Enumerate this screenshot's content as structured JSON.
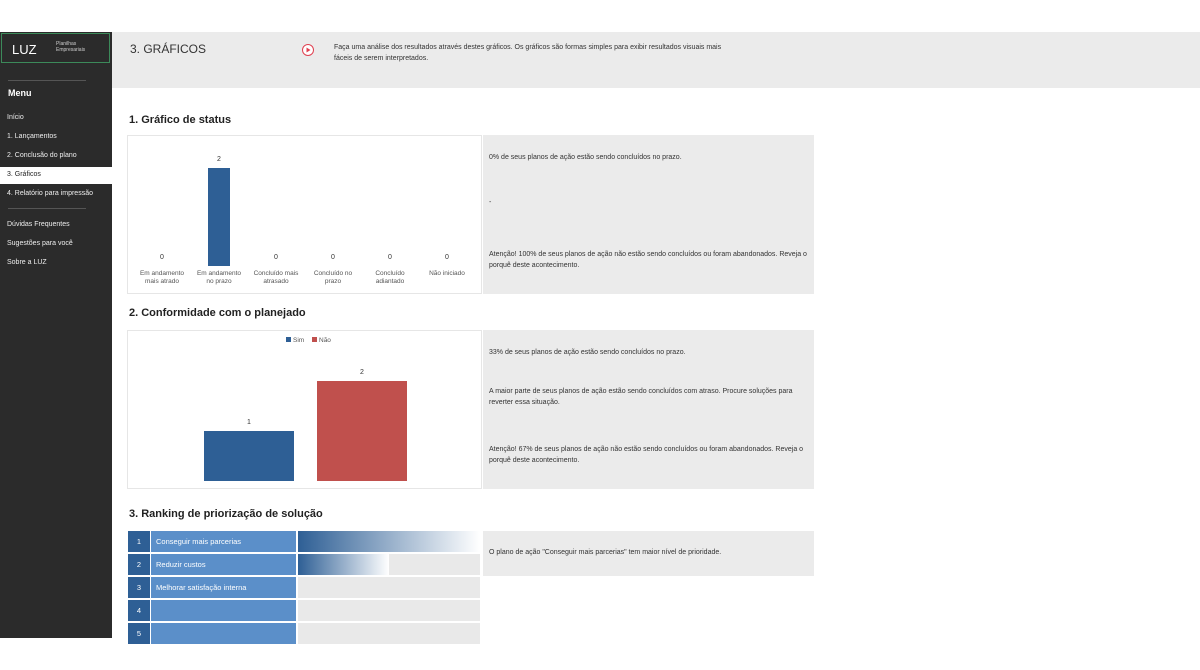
{
  "sidebar": {
    "logo": "LUZ",
    "logo_sub": [
      "Planilhas",
      "Empresariais"
    ],
    "menu_title": "Menu",
    "items": [
      "Início",
      "1. Lançamentos",
      "2. Conclusão do plano",
      "3. Gráficos",
      "4. Relatório para impressão"
    ],
    "items2": [
      "Dúvidas Frequentes",
      "Sugestões para você",
      "Sobre a LUZ"
    ],
    "active": 3
  },
  "header": {
    "title": "3. GRÁFICOS",
    "description": "Faça uma análise dos resultados através destes gráficos. Os gráficos são formas simples para exibir resultados visuais mais fáceis de serem interpretados."
  },
  "status": {
    "heading": "1. Gráfico de status",
    "chart": {
      "type": "bar",
      "categories": [
        "Em andamento mais atrado",
        "Em andamento no prazo",
        "Concluído mais atrasado",
        "Concluído no prazo",
        "Concluído adiantado",
        "Não iniciado"
      ],
      "values": [
        0,
        2,
        0,
        0,
        0,
        0
      ],
      "color": "#2e5f95"
    },
    "messages": [
      "0% de seus planos de ação estão sendo concluídos no prazo.",
      "-",
      "Atenção! 100% de seus planos de ação não estão sendo concluídos ou foram abandonados. Reveja o porquê deste acontecimento."
    ]
  },
  "conformity": {
    "heading": "2. Conformidade com o planejado",
    "chart": {
      "type": "bar",
      "series": [
        {
          "name": "Sim",
          "color": "#2e5f95",
          "values": [
            1
          ]
        },
        {
          "name": "Não",
          "color": "#c0504d",
          "values": [
            2
          ]
        }
      ]
    },
    "messages": [
      "33% de seus planos de ação estão sendo concluídos no prazo.",
      "A maior parte de seus planos de ação estão sendo concluídos com atraso. Procure soluções para reverter essa situação.",
      "Atenção! 67% de seus planos de ação não estão sendo concluídos ou foram abandonados. Reveja o porquê deste acontecimento."
    ]
  },
  "ranking": {
    "heading": "3. Ranking de priorização de solução",
    "ranks": [
      "1",
      "2",
      "3",
      "4",
      "5"
    ],
    "names": [
      "Conseguir mais parcerias",
      "Reduzir custos",
      "Melhorar satisfação interna",
      null,
      null
    ],
    "values": [
      100,
      50,
      0,
      0,
      0
    ],
    "xlim": [
      0,
      100
    ],
    "message": "O plano de ação \"Conseguir mais parcerias\" tem maior nível de prioridade."
  }
}
